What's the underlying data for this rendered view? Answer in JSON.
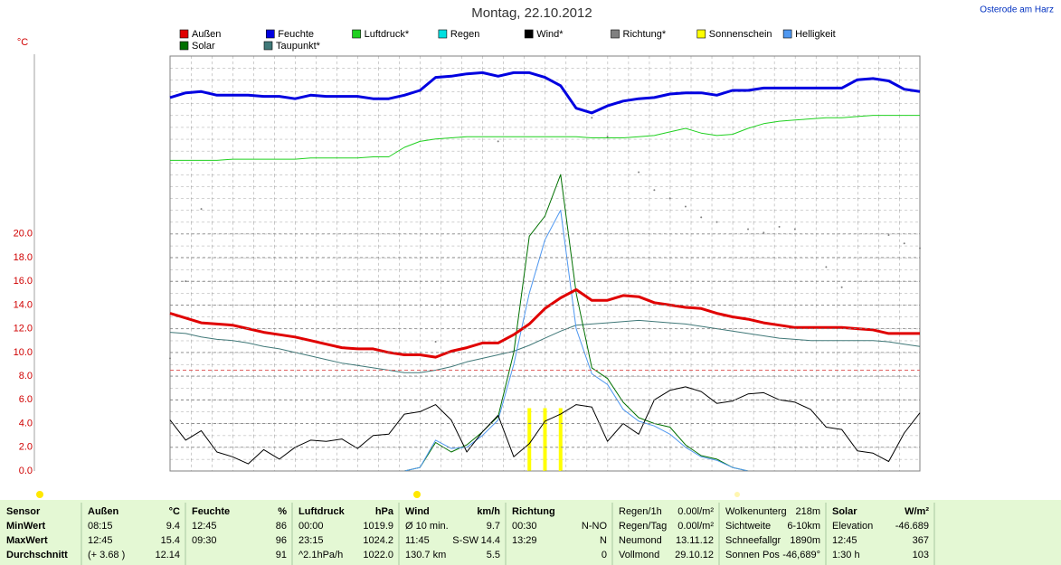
{
  "chart_data": {
    "type": "line",
    "title": "Montag, 22.10.2012",
    "location": "Osterode am Harz",
    "ylabel": "°C",
    "ylim": [
      0,
      35
    ],
    "yticks": [
      {
        "value": 0,
        "label": "0.0"
      },
      {
        "value": 2,
        "label": "2.0"
      },
      {
        "value": 4,
        "label": "4.0"
      },
      {
        "value": 6,
        "label": "6.0"
      },
      {
        "value": 8,
        "label": "8.0"
      },
      {
        "value": 10,
        "label": "10.0"
      },
      {
        "value": 12,
        "label": "12.0"
      },
      {
        "value": 14,
        "label": "14.0"
      },
      {
        "value": 16,
        "label": "16.0"
      },
      {
        "value": 18,
        "label": "18.0"
      },
      {
        "value": 20,
        "label": "20.0"
      }
    ],
    "grid": true,
    "ref_line": {
      "value": 8.5,
      "color": "#e06060"
    },
    "series": [
      {
        "name": "Außen",
        "color": "#e00000",
        "style": "line",
        "line_width": 3,
        "values": [
          13.3,
          12.9,
          12.5,
          12.4,
          12.3,
          12.0,
          11.7,
          11.5,
          11.3,
          11.0,
          10.7,
          10.4,
          10.3,
          10.3,
          10.0,
          9.8,
          9.8,
          9.6,
          10.1,
          10.4,
          10.8,
          10.8,
          11.5,
          12.4,
          13.7,
          14.6,
          15.3,
          14.4,
          14.4,
          14.8,
          14.7,
          14.2,
          14.0,
          13.8,
          13.7,
          13.3,
          13.0,
          12.8,
          12.5,
          12.3,
          12.1,
          12.1,
          12.1,
          12.1,
          12.0,
          11.9,
          11.6,
          11.6,
          11.6
        ]
      },
      {
        "name": "Feuchte",
        "color": "#0000e0",
        "style": "line",
        "line_width": 3,
        "values": [
          31.5,
          31.9,
          32.0,
          31.7,
          31.7,
          31.7,
          31.6,
          31.6,
          31.4,
          31.7,
          31.6,
          31.6,
          31.6,
          31.4,
          31.4,
          31.7,
          32.1,
          33.2,
          33.3,
          33.5,
          33.6,
          33.3,
          33.6,
          33.6,
          33.2,
          32.5,
          30.6,
          30.2,
          30.8,
          31.2,
          31.4,
          31.5,
          31.8,
          31.9,
          31.9,
          31.7,
          32.1,
          32.1,
          32.3,
          32.3,
          32.3,
          32.3,
          32.3,
          32.3,
          33.0,
          33.1,
          32.9,
          32.2,
          32.0
        ]
      },
      {
        "name": "Luftdruck*",
        "color": "#20d020",
        "style": "line",
        "line_width": 1,
        "values": [
          26.2,
          26.2,
          26.2,
          26.2,
          26.3,
          26.3,
          26.3,
          26.3,
          26.3,
          26.4,
          26.4,
          26.4,
          26.4,
          26.5,
          26.5,
          27.3,
          27.8,
          28.0,
          28.1,
          28.2,
          28.2,
          28.2,
          28.2,
          28.2,
          28.2,
          28.2,
          28.2,
          28.1,
          28.1,
          28.1,
          28.2,
          28.3,
          28.6,
          28.9,
          28.5,
          28.3,
          28.4,
          28.9,
          29.3,
          29.5,
          29.6,
          29.7,
          29.8,
          29.8,
          29.9,
          30.0,
          30.0,
          30.0,
          30.0
        ]
      },
      {
        "name": "Regen",
        "color": "#00e0e0",
        "style": "line",
        "line_width": 1,
        "values": [
          null,
          null,
          null,
          null,
          null,
          null,
          null,
          null,
          null,
          null,
          null,
          null,
          null,
          null,
          null,
          null,
          null,
          null,
          null,
          null,
          null,
          null,
          null,
          null,
          null,
          null,
          null,
          null,
          null,
          null,
          null,
          null,
          null,
          null,
          null,
          null,
          null,
          null,
          null,
          null,
          null,
          null,
          null,
          null,
          null,
          null,
          null,
          null,
          null
        ]
      },
      {
        "name": "Wind*",
        "color": "#000000",
        "style": "line",
        "line_width": 1,
        "values": [
          4.3,
          2.6,
          3.4,
          1.6,
          1.2,
          0.6,
          1.8,
          1.0,
          2.0,
          2.6,
          2.5,
          2.7,
          1.9,
          3.0,
          3.1,
          4.8,
          5.0,
          5.6,
          4.3,
          1.6,
          3.3,
          4.7,
          1.2,
          2.3,
          4.2,
          4.8,
          5.6,
          5.4,
          2.5,
          4.0,
          3.1,
          6.0,
          6.8,
          7.1,
          6.7,
          5.7,
          5.9,
          6.5,
          6.6,
          6.0,
          5.8,
          5.2,
          3.7,
          3.5,
          1.7,
          1.5,
          0.8,
          3.2,
          4.9
        ]
      },
      {
        "name": "Richtung*",
        "color": "#808080",
        "style": "dots",
        "values": [
          9.5,
          16.0,
          22.1,
          null,
          null,
          null,
          null,
          null,
          null,
          null,
          null,
          null,
          null,
          null,
          null,
          null,
          null,
          10.9,
          null,
          null,
          null,
          27.8,
          null,
          null,
          null,
          null,
          null,
          29.8,
          28.2,
          null,
          25.2,
          23.7,
          23.0,
          22.3,
          21.4,
          21.0,
          null,
          20.4,
          20.1,
          20.6,
          20.4,
          null,
          17.2,
          15.5,
          null,
          null,
          19.9,
          19.2,
          18.8
        ]
      },
      {
        "name": "Sonnenschein",
        "color": "#ffff00",
        "style": "bars",
        "values": [
          null,
          null,
          null,
          null,
          null,
          null,
          null,
          null,
          null,
          null,
          null,
          null,
          null,
          null,
          null,
          null,
          null,
          null,
          null,
          null,
          null,
          null,
          null,
          5.3,
          5.3,
          5.3,
          null,
          null,
          null,
          null,
          null,
          null,
          null,
          null,
          null,
          null,
          null,
          null,
          null,
          null,
          null,
          null,
          null,
          null,
          null,
          null,
          null,
          null,
          null
        ]
      },
      {
        "name": "Helligkeit",
        "color": "#5098f0",
        "style": "line",
        "line_width": 1,
        "values": [
          null,
          null,
          null,
          null,
          null,
          null,
          null,
          null,
          null,
          null,
          null,
          null,
          null,
          null,
          null,
          0,
          0.3,
          2.6,
          1.9,
          2.0,
          3.0,
          4.3,
          9.0,
          15.0,
          19.5,
          22.0,
          12.0,
          8.2,
          7.3,
          5.2,
          4.2,
          3.8,
          3.1,
          2.0,
          1.2,
          0.9,
          0.3,
          0,
          null,
          null,
          null,
          null,
          null,
          null,
          null,
          null,
          null,
          null,
          null
        ]
      },
      {
        "name": "Solar",
        "color": "#007000",
        "style": "line",
        "line_width": 1,
        "values": [
          null,
          null,
          null,
          null,
          null,
          null,
          null,
          null,
          null,
          null,
          null,
          null,
          null,
          null,
          null,
          0,
          0.3,
          2.4,
          1.6,
          2.2,
          3.3,
          4.6,
          10.0,
          19.8,
          21.5,
          25.0,
          15.0,
          8.7,
          7.8,
          5.8,
          4.5,
          4.0,
          3.7,
          2.2,
          1.3,
          1.0,
          0.3,
          0,
          null,
          null,
          null,
          null,
          null,
          null,
          null,
          null,
          null,
          null,
          null
        ]
      },
      {
        "name": "Taupunkt*",
        "color": "#407878",
        "style": "line",
        "line_width": 1,
        "values": [
          11.7,
          11.6,
          11.3,
          11.1,
          11.0,
          10.8,
          10.5,
          10.3,
          10.0,
          9.7,
          9.4,
          9.1,
          8.9,
          8.7,
          8.5,
          8.3,
          8.3,
          8.5,
          8.8,
          9.2,
          9.5,
          9.8,
          10.1,
          10.6,
          11.2,
          11.8,
          12.3,
          12.4,
          12.5,
          12.6,
          12.7,
          12.6,
          12.5,
          12.4,
          12.2,
          12.0,
          11.8,
          11.6,
          11.4,
          11.2,
          11.1,
          11.0,
          11.0,
          11.0,
          11.0,
          11.0,
          10.9,
          10.7,
          10.5
        ]
      }
    ]
  },
  "table": {
    "columns": [
      {
        "bold": "all",
        "rows": [
          [
            "Sensor"
          ],
          [
            "MinWert"
          ],
          [
            "MaxWert"
          ],
          [
            "Durchschnitt"
          ]
        ]
      },
      {
        "bold": "header",
        "rows": [
          [
            "Außen",
            "°C"
          ],
          [
            "08:15",
            "9.4"
          ],
          [
            "12:45",
            "15.4"
          ],
          [
            "(+ 3.68 )",
            "12.14"
          ]
        ]
      },
      {
        "bold": "header",
        "rows": [
          [
            "Feuchte",
            "%"
          ],
          [
            "12:45",
            "86"
          ],
          [
            "09:30",
            "96"
          ],
          [
            null,
            "91"
          ]
        ]
      },
      {
        "bold": "header",
        "rows": [
          [
            "Luftdruck",
            "hPa"
          ],
          [
            "00:00",
            "1019.9"
          ],
          [
            "23:15",
            "1024.2"
          ],
          [
            "^2.1hPa/h",
            "1022.0"
          ]
        ]
      },
      {
        "bold": "header",
        "rows": [
          [
            "Wind",
            "km/h"
          ],
          [
            "Ø 10 min.",
            "9.7"
          ],
          [
            "11:45",
            "S-SW",
            "14.4"
          ],
          [
            "130.7 km",
            "5.5"
          ]
        ]
      },
      {
        "bold": "header",
        "rows": [
          [
            "Richtung"
          ],
          [
            "00:30",
            "N-NO"
          ],
          [
            "13:29",
            "N"
          ],
          [
            null,
            "0"
          ]
        ]
      },
      {
        "bold": "none",
        "rows": [
          [
            "Regen/1h",
            "0.00l/m²"
          ],
          [
            "Regen/Tag",
            "0.00l/m²"
          ],
          [
            "Neumond",
            "13.11.12"
          ],
          [
            "Vollmond",
            "29.10.12"
          ]
        ]
      },
      {
        "bold": "none",
        "rows": [
          [
            "Wolkenunterg",
            "218m"
          ],
          [
            "Sichtweite",
            "6-10km"
          ],
          [
            "Schneefallgr",
            "1890m"
          ],
          [
            "Sonnen Pos",
            "-46,689°"
          ]
        ]
      },
      {
        "bold": "header",
        "rows": [
          [
            "Solar",
            "W/m²"
          ],
          [
            "Elevation",
            "-46.689"
          ],
          [
            "12:45",
            "367"
          ],
          [
            "1:30 h",
            "103"
          ]
        ]
      }
    ]
  }
}
